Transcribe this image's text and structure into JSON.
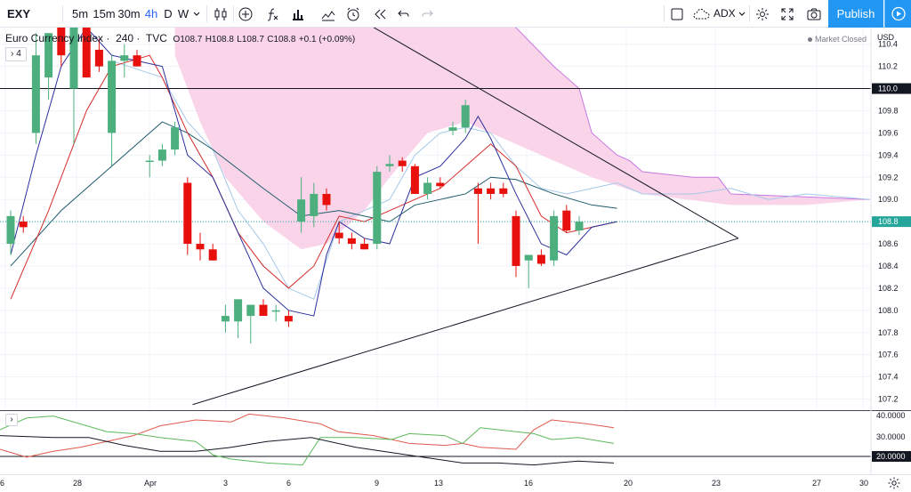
{
  "toolbar": {
    "symbol": "EXY",
    "intervals": [
      "5m",
      "15m",
      "30m",
      "4h",
      "D",
      "W"
    ],
    "active_interval": "4h",
    "indicator_name": "ADX",
    "publish_label": "Publish"
  },
  "legend": {
    "title": "Euro Currency Index",
    "interval": "240",
    "source": "TVC",
    "open": "O108.7",
    "high": "H108.8",
    "low": "L108.7",
    "close": "C108.8",
    "change": "+0.1 (+0.09%)",
    "indicator_count": "4"
  },
  "market_status": "Market Closed",
  "currency": "USD",
  "price_axis": {
    "ticks": [
      "110.4",
      "110.2",
      "110.0",
      "109.8",
      "109.6",
      "109.4",
      "109.2",
      "109.0",
      "108.8",
      "108.6",
      "108.4",
      "108.2",
      "108.0",
      "107.8",
      "107.6",
      "107.4",
      "107.2"
    ],
    "highlighted": [
      {
        "label": "110.0",
        "value": 110.0
      },
      {
        "label": "108.8",
        "value": 108.8,
        "color": "#26a69a"
      }
    ]
  },
  "sub_axis": {
    "ticks": [
      "40.0000",
      "30.0000",
      "20.0000"
    ],
    "highlighted": "20.0000"
  },
  "date_axis": [
    "6",
    "28",
    "Apr",
    "3",
    "6",
    "9",
    "13",
    "16",
    "20",
    "23",
    "27",
    "30"
  ],
  "colors": {
    "up": "#4caf7d",
    "down": "#e8100c",
    "cloud": "#f8c7e3",
    "cloud_line": "#c779e0",
    "blue_line": "#2b2f9c",
    "red_line": "#d62b2b",
    "teal_line": "#1e5b6b",
    "light_blue": "#a5c8e8",
    "accent": "#2196f3"
  },
  "chart_data": {
    "type": "candlestick",
    "y_range": [
      107.1,
      110.55
    ],
    "candles": [
      {
        "o": 108.6,
        "h": 108.9,
        "l": 108.5,
        "c": 108.85
      },
      {
        "o": 108.8,
        "h": 108.85,
        "l": 108.7,
        "c": 108.75
      },
      {
        "o": 109.6,
        "h": 110.5,
        "l": 109.5,
        "c": 110.3
      },
      {
        "o": 110.1,
        "h": 110.5,
        "l": 109.9,
        "c": 110.5
      },
      {
        "o": 110.6,
        "h": 110.6,
        "l": 110.2,
        "c": 110.3
      },
      {
        "o": 110.0,
        "h": 110.6,
        "l": 109.5,
        "c": 110.6
      },
      {
        "o": 110.6,
        "h": 110.65,
        "l": 110.1,
        "c": 110.1
      },
      {
        "o": 110.35,
        "h": 110.45,
        "l": 110.15,
        "c": 110.2
      },
      {
        "o": 109.6,
        "h": 110.3,
        "l": 109.3,
        "c": 110.25
      },
      {
        "o": 110.25,
        "h": 110.4,
        "l": 110.1,
        "c": 110.3
      },
      {
        "o": 110.3,
        "h": 110.35,
        "l": 110.2,
        "c": 110.2
      },
      {
        "o": 109.35,
        "h": 109.4,
        "l": 109.2,
        "c": 109.35
      },
      {
        "o": 109.35,
        "h": 109.5,
        "l": 109.3,
        "c": 109.45
      },
      {
        "o": 109.45,
        "h": 109.7,
        "l": 109.4,
        "c": 109.65
      },
      {
        "o": 109.15,
        "h": 109.2,
        "l": 108.5,
        "c": 108.6
      },
      {
        "o": 108.6,
        "h": 108.7,
        "l": 108.45,
        "c": 108.55
      },
      {
        "o": 108.55,
        "h": 108.6,
        "l": 108.45,
        "c": 108.45
      },
      {
        "o": 107.9,
        "h": 108.05,
        "l": 107.8,
        "c": 107.95
      },
      {
        "o": 107.9,
        "h": 108.1,
        "l": 107.75,
        "c": 108.1
      },
      {
        "o": 107.95,
        "h": 108.05,
        "l": 107.7,
        "c": 108.05
      },
      {
        "o": 108.05,
        "h": 108.1,
        "l": 107.95,
        "c": 107.95
      },
      {
        "o": 108.0,
        "h": 108.05,
        "l": 107.9,
        "c": 108.0
      },
      {
        "o": 107.95,
        "h": 108.0,
        "l": 107.85,
        "c": 107.9
      },
      {
        "o": 108.8,
        "h": 109.2,
        "l": 108.7,
        "c": 109.0
      },
      {
        "o": 108.85,
        "h": 109.15,
        "l": 108.75,
        "c": 109.05
      },
      {
        "o": 109.05,
        "h": 109.1,
        "l": 108.9,
        "c": 108.95
      },
      {
        "o": 108.7,
        "h": 108.8,
        "l": 108.6,
        "c": 108.65
      },
      {
        "o": 108.65,
        "h": 108.7,
        "l": 108.55,
        "c": 108.6
      },
      {
        "o": 108.6,
        "h": 108.65,
        "l": 108.55,
        "c": 108.55
      },
      {
        "o": 108.6,
        "h": 109.3,
        "l": 108.55,
        "c": 109.25
      },
      {
        "o": 109.3,
        "h": 109.4,
        "l": 109.25,
        "c": 109.32
      },
      {
        "o": 109.35,
        "h": 109.38,
        "l": 109.25,
        "c": 109.3
      },
      {
        "o": 109.3,
        "h": 109.32,
        "l": 109.05,
        "c": 109.05
      },
      {
        "o": 109.05,
        "h": 109.2,
        "l": 109.0,
        "c": 109.15
      },
      {
        "o": 109.15,
        "h": 109.2,
        "l": 109.1,
        "c": 109.12
      },
      {
        "o": 109.62,
        "h": 109.7,
        "l": 109.58,
        "c": 109.65
      },
      {
        "o": 109.65,
        "h": 109.9,
        "l": 109.6,
        "c": 109.85
      },
      {
        "o": 109.1,
        "h": 109.15,
        "l": 108.6,
        "c": 109.05
      },
      {
        "o": 109.1,
        "h": 109.15,
        "l": 109.0,
        "c": 109.05
      },
      {
        "o": 109.1,
        "h": 109.15,
        "l": 109.02,
        "c": 109.05
      },
      {
        "o": 108.85,
        "h": 108.9,
        "l": 108.3,
        "c": 108.4
      },
      {
        "o": 108.45,
        "h": 108.5,
        "l": 108.2,
        "c": 108.5
      },
      {
        "o": 108.5,
        "h": 108.55,
        "l": 108.4,
        "c": 108.42
      },
      {
        "o": 108.45,
        "h": 108.9,
        "l": 108.4,
        "c": 108.85
      },
      {
        "o": 108.9,
        "h": 108.95,
        "l": 108.7,
        "c": 108.72
      },
      {
        "o": 108.72,
        "h": 108.85,
        "l": 108.68,
        "c": 108.8
      }
    ],
    "adx_ticks": [
      40,
      30,
      20
    ]
  }
}
